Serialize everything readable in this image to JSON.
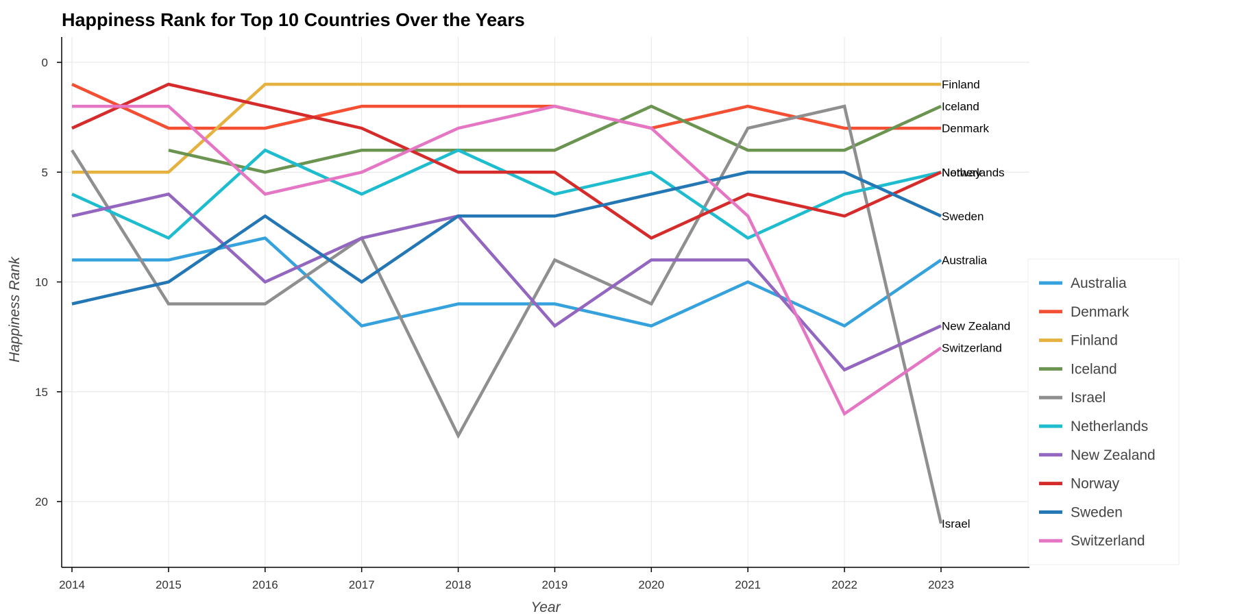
{
  "chart_data": {
    "type": "line",
    "title": "Happiness Rank for Top 10 Countries Over the Years",
    "xlabel": "Year",
    "ylabel": "Happiness Rank",
    "x": [
      2014,
      2015,
      2016,
      2017,
      2018,
      2019,
      2020,
      2021,
      2022,
      2023
    ],
    "xlim": [
      2014,
      2023
    ],
    "ylim": [
      0,
      22
    ],
    "y_inverted": true,
    "y_ticks": [
      0,
      5,
      10,
      15,
      20
    ],
    "grid": true,
    "legend_position": "right",
    "series": [
      {
        "name": "Australia",
        "color": "#35a2dd",
        "values": [
          9,
          9,
          8,
          12,
          11,
          11,
          12,
          10,
          12,
          9
        ]
      },
      {
        "name": "Denmark",
        "color": "#f44e33",
        "values": [
          1,
          3,
          3,
          2,
          2,
          2,
          3,
          2,
          3,
          3
        ]
      },
      {
        "name": "Finland",
        "color": "#e5b13f",
        "values": [
          5,
          5,
          1,
          1,
          1,
          1,
          1,
          1,
          1,
          1
        ]
      },
      {
        "name": "Iceland",
        "color": "#6a9450",
        "values": [
          null,
          4,
          5,
          4,
          4,
          4,
          2,
          4,
          4,
          2
        ]
      },
      {
        "name": "Israel",
        "color": "#8f8f8f",
        "values": [
          4,
          11,
          11,
          8,
          17,
          9,
          11,
          3,
          2,
          21
        ]
      },
      {
        "name": "Netherlands",
        "color": "#1ebccf",
        "values": [
          6,
          8,
          4,
          6,
          4,
          6,
          5,
          8,
          6,
          5
        ]
      },
      {
        "name": "New Zealand",
        "color": "#9366c0",
        "values": [
          7,
          6,
          10,
          8,
          7,
          12,
          9,
          9,
          14,
          12
        ]
      },
      {
        "name": "Norway",
        "color": "#d62b2b",
        "values": [
          3,
          1,
          2,
          3,
          5,
          5,
          8,
          6,
          7,
          5
        ]
      },
      {
        "name": "Sweden",
        "color": "#2377b4",
        "values": [
          11,
          10,
          7,
          10,
          7,
          7,
          6,
          5,
          5,
          7
        ]
      },
      {
        "name": "Switzerland",
        "color": "#e576c4",
        "values": [
          2,
          2,
          6,
          5,
          3,
          2,
          3,
          7,
          16,
          13
        ]
      }
    ]
  }
}
